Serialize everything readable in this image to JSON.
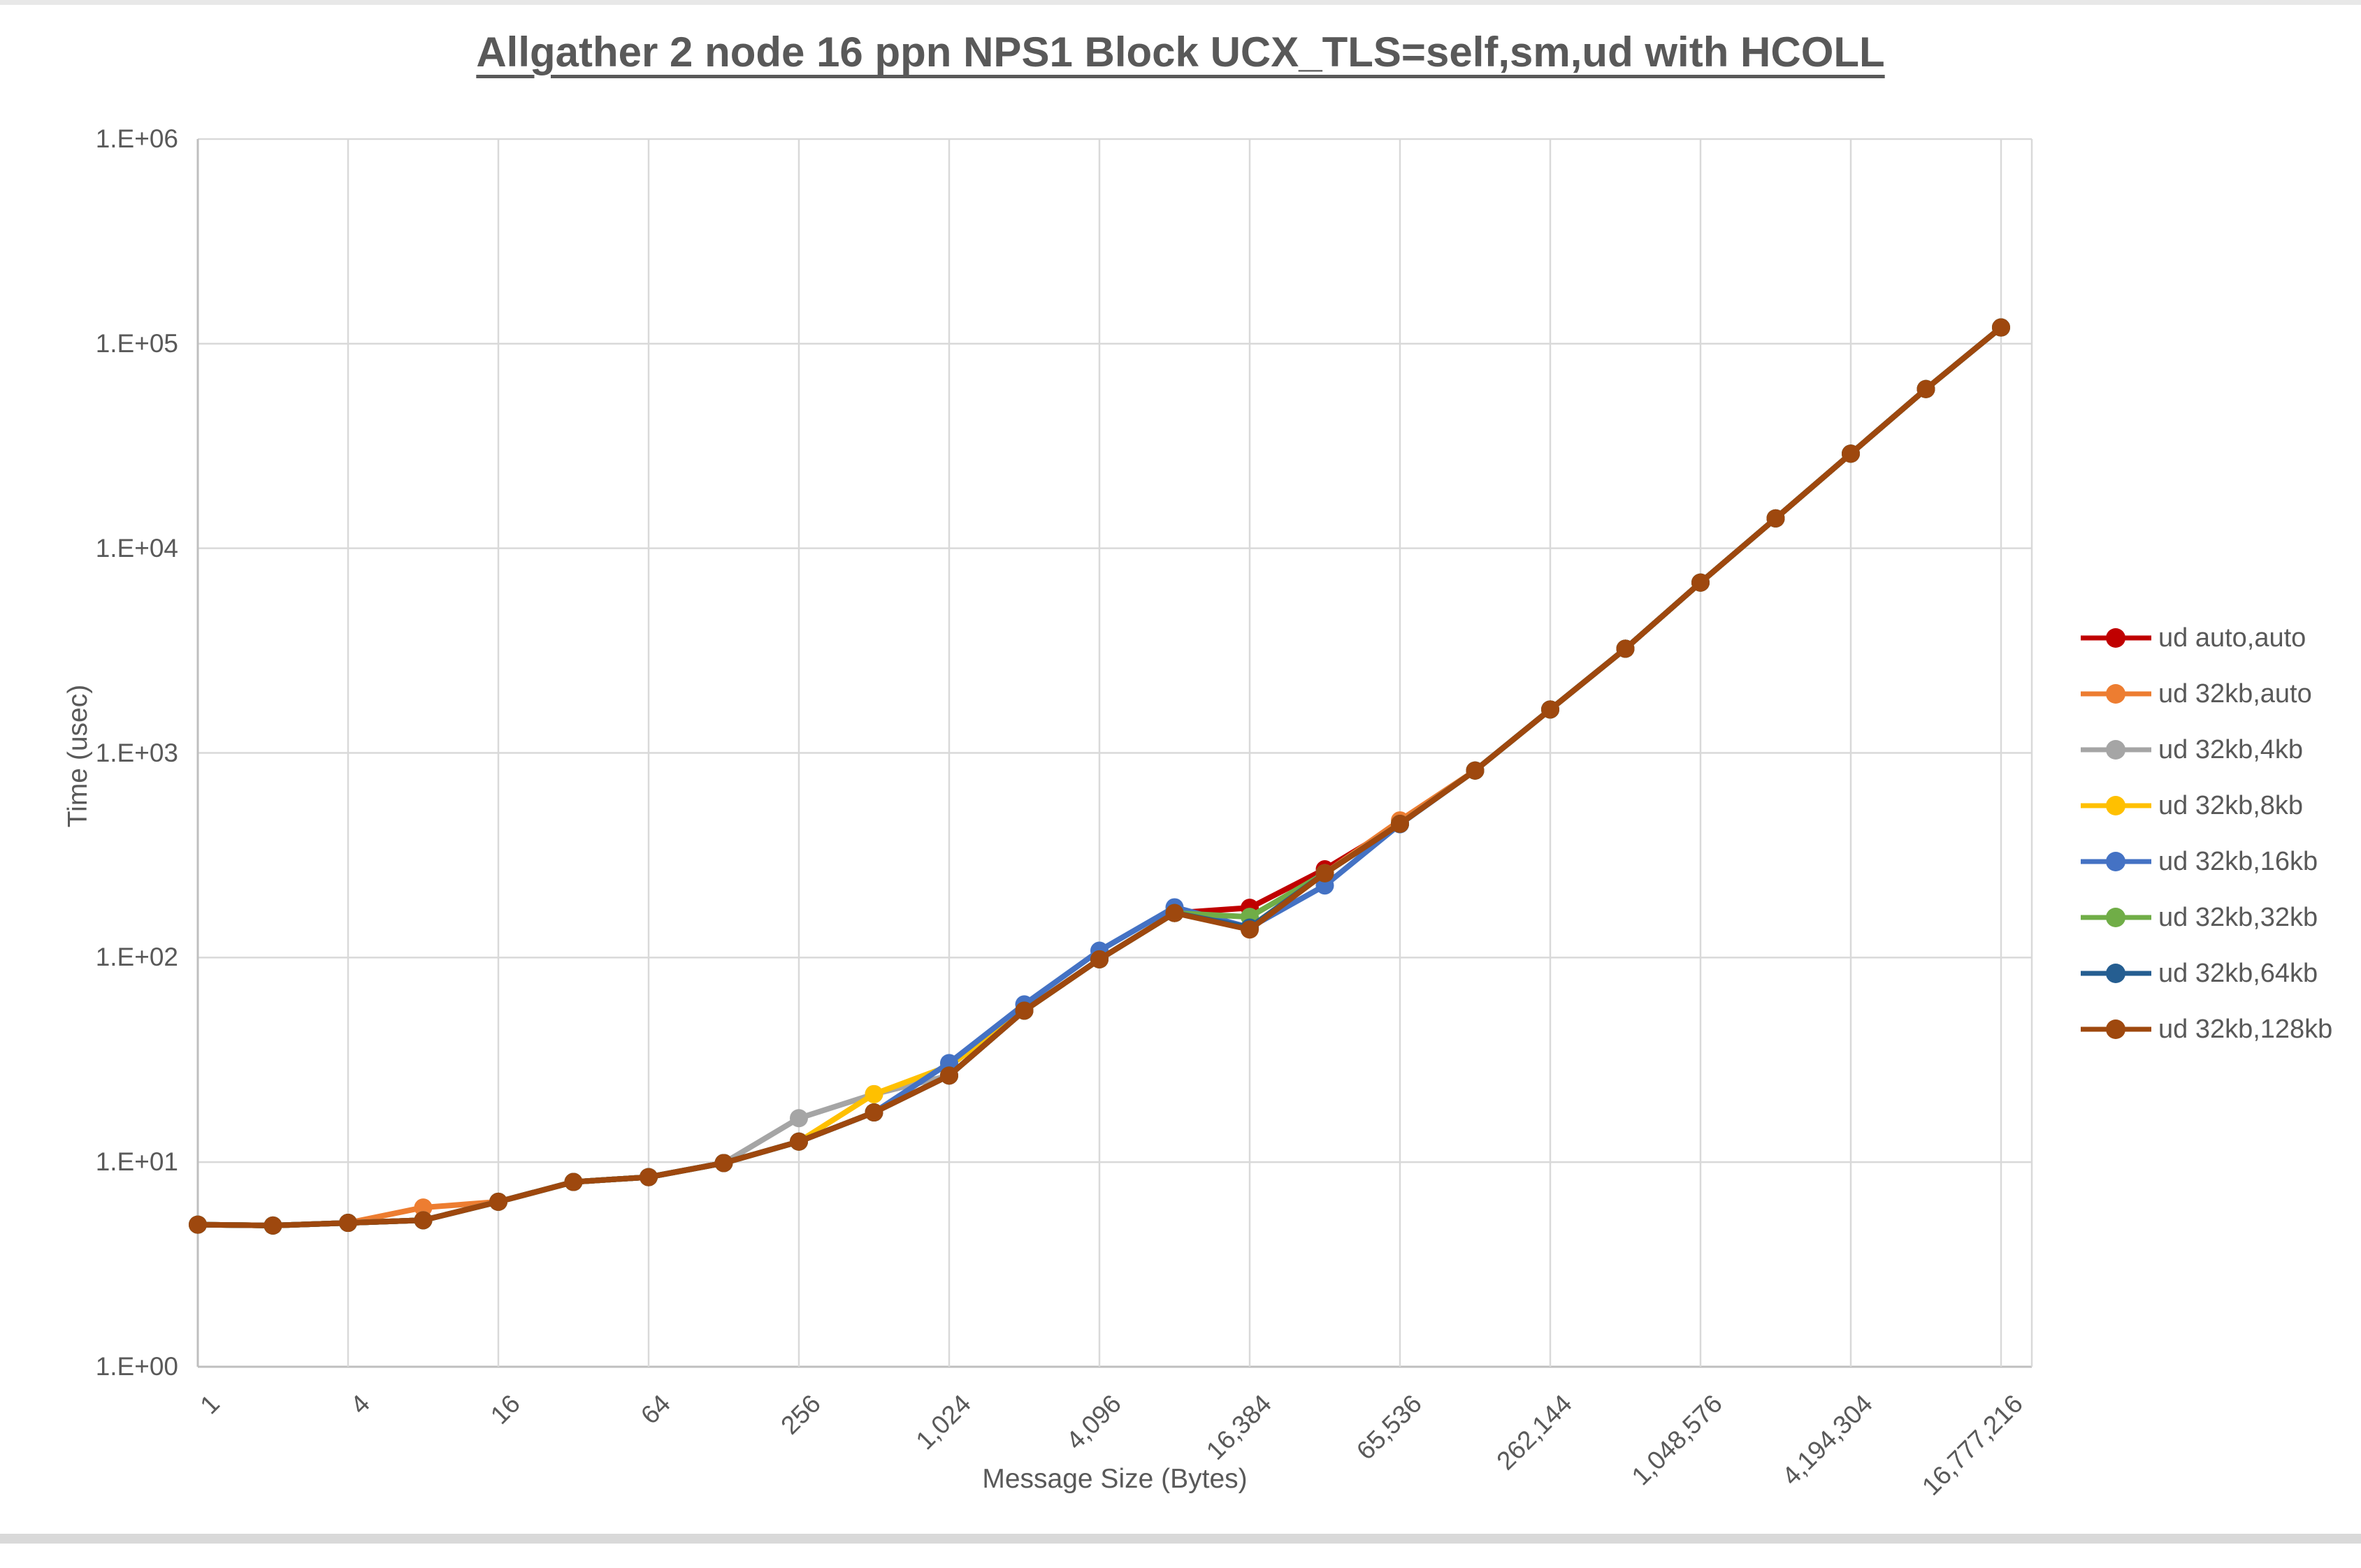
{
  "title": {
    "text": "Allgather 2 node 16 ppn NPS1 Block UCX_TLS=self,sm,ud with HCOLL"
  },
  "axes": {
    "y": {
      "title": "Time (usec)",
      "tick_labels": [
        "1.E+00",
        "1.E+01",
        "1.E+02",
        "1.E+03",
        "1.E+04",
        "1.E+05",
        "1.E+06"
      ]
    },
    "x": {
      "title": "Message Size (Bytes)",
      "tick_labels": [
        "1",
        "4",
        "16",
        "64",
        "256",
        "1,024",
        "4,096",
        "16,384",
        "65,536",
        "262,144",
        "1,048,576",
        "4,194,304",
        "16,777,216"
      ],
      "tick_values": [
        1,
        4,
        16,
        64,
        256,
        1024,
        4096,
        16384,
        65536,
        262144,
        1048576,
        4194304,
        16777216
      ]
    }
  },
  "style": {
    "text_color": "#595959",
    "grid_color": "#d9d9d9",
    "axis_color": "#bfbfbf",
    "background": "#ffffff"
  },
  "chart_data": {
    "type": "line",
    "title": "Allgather 2 node 16 ppn NPS1 Block UCX_TLS=self,sm,ud with HCOLL",
    "xlabel": "Message Size (Bytes)",
    "ylabel": "Time (usec)",
    "x_scale": "log2",
    "y_scale": "log10",
    "ylim": [
      1,
      1000000
    ],
    "grid": true,
    "legend_position": "right",
    "x": [
      1,
      2,
      4,
      8,
      16,
      32,
      64,
      128,
      256,
      512,
      1024,
      2048,
      4096,
      8192,
      16384,
      32768,
      65536,
      131072,
      262144,
      524288,
      1048576,
      2097152,
      4194304,
      8388608,
      16777216
    ],
    "series": [
      {
        "name": "ud auto,auto",
        "color": "#C00000",
        "values": [
          4.95,
          4.9,
          5.05,
          5.2,
          6.4,
          8.0,
          8.45,
          9.9,
          12.6,
          17.5,
          26.5,
          55,
          98,
          165,
          175,
          270,
          450,
          820,
          1630,
          3230,
          6800,
          14000,
          29000,
          60000,
          120000
        ]
      },
      {
        "name": "ud 32kb,auto",
        "color": "#ED7D31",
        "values": [
          4.95,
          4.9,
          5.05,
          6.0,
          6.4,
          8.0,
          8.45,
          9.9,
          12.6,
          17.5,
          26.5,
          55,
          98,
          165,
          140,
          258,
          468,
          820,
          1630,
          3230,
          6800,
          14000,
          29000,
          60000,
          120000
        ]
      },
      {
        "name": "ud 32kb,4kb",
        "color": "#A5A5A5",
        "values": [
          4.95,
          4.9,
          5.05,
          5.2,
          6.4,
          8.0,
          8.45,
          9.9,
          16.4,
          21.5,
          26.5,
          55,
          98,
          165,
          140,
          258,
          450,
          820,
          1630,
          3230,
          6800,
          14000,
          29000,
          60000,
          120000
        ]
      },
      {
        "name": "ud 32kb,8kb",
        "color": "#FFC000",
        "values": [
          4.95,
          4.9,
          5.05,
          5.2,
          6.4,
          8.0,
          8.45,
          9.9,
          12.6,
          21.5,
          29.5,
          55,
          98,
          165,
          140,
          258,
          450,
          820,
          1630,
          3230,
          6800,
          14000,
          29000,
          60000,
          120000
        ]
      },
      {
        "name": "ud 32kb,16kb",
        "color": "#4472C4",
        "values": [
          4.95,
          4.9,
          5.05,
          5.2,
          6.4,
          8.0,
          8.45,
          9.9,
          12.6,
          17.5,
          30.5,
          59,
          108,
          176,
          140,
          225,
          448,
          820,
          1630,
          3230,
          6800,
          14000,
          29000,
          60000,
          120000
        ]
      },
      {
        "name": "ud 32kb,32kb",
        "color": "#70AD47",
        "values": [
          4.95,
          4.9,
          5.05,
          5.2,
          6.4,
          8.0,
          8.45,
          9.9,
          12.6,
          17.5,
          26.5,
          55,
          98,
          165,
          158,
          258,
          450,
          820,
          1630,
          3230,
          6800,
          14000,
          29000,
          60000,
          120000
        ]
      },
      {
        "name": "ud 32kb,64kb",
        "color": "#255E91",
        "values": [
          4.95,
          4.9,
          5.05,
          5.2,
          6.4,
          8.0,
          8.45,
          9.9,
          12.6,
          17.5,
          26.5,
          55,
          98,
          165,
          140,
          258,
          450,
          820,
          1630,
          3230,
          6800,
          14000,
          29000,
          60000,
          120000
        ]
      },
      {
        "name": "ud 32kb,128kb",
        "color": "#9E480E",
        "values": [
          4.95,
          4.9,
          5.05,
          5.2,
          6.4,
          8.0,
          8.45,
          9.9,
          12.6,
          17.5,
          26.5,
          55,
          98,
          165,
          137,
          258,
          450,
          820,
          1630,
          3230,
          6800,
          14000,
          29000,
          60000,
          120000
        ]
      }
    ]
  }
}
